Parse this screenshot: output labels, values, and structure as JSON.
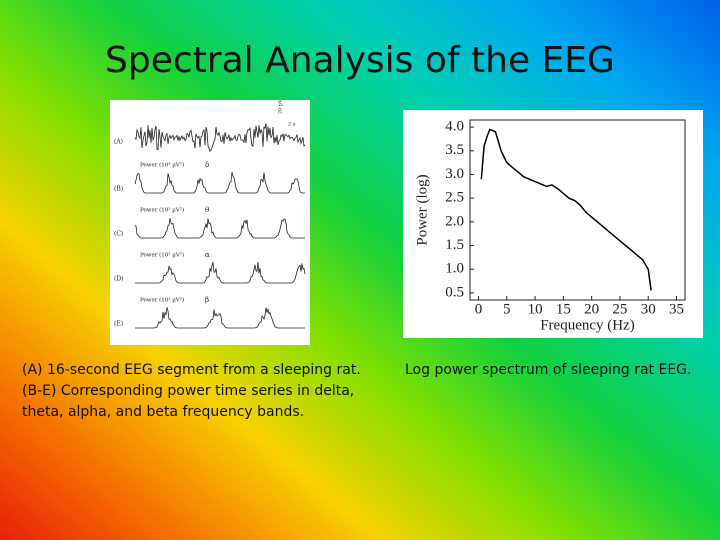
{
  "title": "Spectral Analysis of the EEG",
  "left_figure": {
    "scale_labels": [
      "20 µV",
      "2 s"
    ],
    "panels": [
      {
        "label": "(A)"
      },
      {
        "label": "(B)",
        "power_label": "Power (10³ µV²)",
        "band": "δ"
      },
      {
        "label": "(C)",
        "power_label": "Power (10³ µV²)",
        "band": "θ"
      },
      {
        "label": "(D)",
        "power_label": "Power (10³ µV²)",
        "band": "α"
      },
      {
        "label": "(E)",
        "power_label": "Power (10³ µV²)",
        "band": "β"
      }
    ],
    "caption": [
      "(A) 16-second EEG segment from a sleeping rat.",
      "(B-E) Corresponding power time series in delta,",
      "theta, alpha, and beta frequency bands."
    ]
  },
  "right_figure": {
    "caption": "Log power spectrum of sleeping rat EEG.",
    "chart": {
      "type": "line",
      "x_label": "Frequency (Hz)",
      "y_label": "Power (log)",
      "color": "#000000",
      "x": [
        0.5,
        1,
        1.5,
        2,
        3,
        4,
        5,
        6,
        7,
        8,
        9,
        10,
        11,
        12,
        13,
        14,
        15,
        16,
        17,
        18,
        19,
        20,
        21,
        22,
        23,
        24,
        25,
        26,
        27,
        28,
        29,
        30,
        30.5
      ],
      "values": [
        2.9,
        3.6,
        3.8,
        3.95,
        3.9,
        3.5,
        3.25,
        3.15,
        3.05,
        2.95,
        2.9,
        2.85,
        2.8,
        2.75,
        2.78,
        2.7,
        2.6,
        2.5,
        2.45,
        2.35,
        2.2,
        2.1,
        2.0,
        1.9,
        1.8,
        1.7,
        1.6,
        1.5,
        1.4,
        1.3,
        1.2,
        1.0,
        0.55
      ],
      "xlim": [
        -1.5,
        36.5
      ],
      "ylim": [
        0.35,
        4.15
      ],
      "xticks": [
        0,
        5,
        10,
        15,
        20,
        25,
        30,
        35
      ],
      "yticks": [
        0.5,
        {
          "value": 1.0,
          "label": "1.0"
        },
        1.5,
        {
          "value": 2.0,
          "label": "2.0"
        },
        2.5,
        {
          "value": 3.0,
          "label": "3.0"
        },
        3.5,
        {
          "value": 4.0,
          "label": "4.0"
        }
      ]
    }
  }
}
